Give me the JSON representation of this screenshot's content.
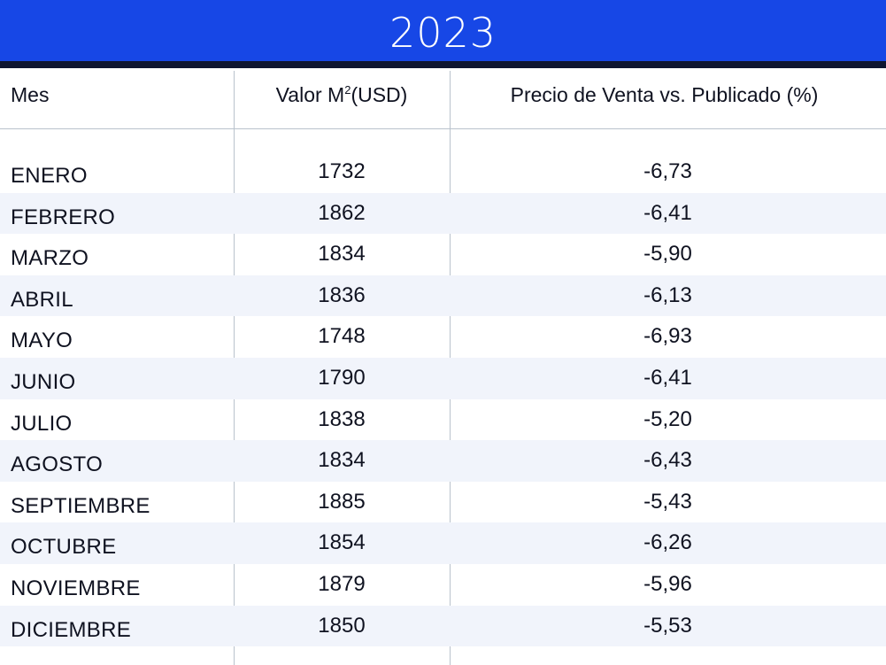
{
  "title": "2023",
  "columns": {
    "month": "Mes",
    "value_prefix": "Valor M",
    "value_sup": "2",
    "value_suffix": "(USD)",
    "ratio": "Precio de Venta vs. Publicado (%)"
  },
  "rows": [
    {
      "month": "ENERO",
      "value": "1732",
      "ratio": "-6,73"
    },
    {
      "month": "FEBRERO",
      "value": "1862",
      "ratio": "-6,41"
    },
    {
      "month": "MARZO",
      "value": "1834",
      "ratio": "-5,90"
    },
    {
      "month": "ABRIL",
      "value": "1836",
      "ratio": "-6,13"
    },
    {
      "month": "MAYO",
      "value": "1748",
      "ratio": "-6,93"
    },
    {
      "month": "JUNIO",
      "value": "1790",
      "ratio": "-6,41"
    },
    {
      "month": "JULIO",
      "value": "1838",
      "ratio": "-5,20"
    },
    {
      "month": "AGOSTO",
      "value": "1834",
      "ratio": "-6,43"
    },
    {
      "month": "SEPTIEMBRE",
      "value": "1885",
      "ratio": "-5,43"
    },
    {
      "month": "OCTUBRE",
      "value": "1854",
      "ratio": "-6,26"
    },
    {
      "month": "NOVIEMBRE",
      "value": "1879",
      "ratio": "-5,96"
    },
    {
      "month": "DICIEMBRE",
      "value": "1850",
      "ratio": "-5,53"
    }
  ],
  "colors": {
    "banner": "#1747e6",
    "banner_rule": "#0e1530",
    "row_alt": "#f1f4fb",
    "grid": "#b9c2cc"
  }
}
